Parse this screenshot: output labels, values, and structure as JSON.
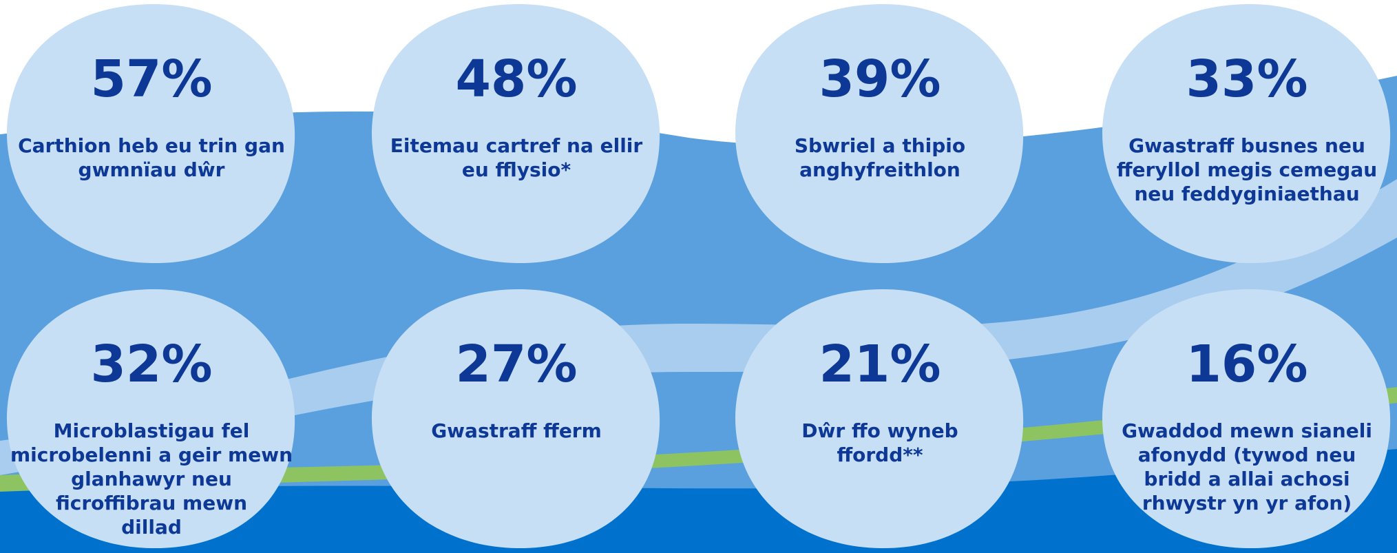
{
  "items": [
    {
      "value": "57%",
      "lines": [
        "Carthion heb eu trin gan",
        "gwmnïau dŵr"
      ]
    },
    {
      "value": "48%",
      "lines": [
        "Eitemau cartref na ellir",
        "eu fflysio*"
      ]
    },
    {
      "value": "39%",
      "lines": [
        "Sbwriel a thipio",
        "anghyfreithlon"
      ]
    },
    {
      "value": "33%",
      "lines": [
        "Gwastraff busnes neu",
        "fferyllol megis cemegau",
        "neu feddyginiaethau"
      ]
    },
    {
      "value": "32%",
      "lines": [
        "Microblastigau fel",
        "microbelenni a geir mewn",
        "glanhawyr neu",
        "ficroffibrau mewn",
        "dillad"
      ]
    },
    {
      "value": "27%",
      "lines": [
        "Gwastraff fferm"
      ]
    },
    {
      "value": "21%",
      "lines": [
        "Dŵr ffo wyneb",
        "ffordd**"
      ]
    },
    {
      "value": "16%",
      "lines": [
        "Gwaddod mewn sianeli",
        "afonydd (tywod neu",
        "bridd a allai achosi",
        "rhwystr yn yr afon)"
      ]
    }
  ]
}
